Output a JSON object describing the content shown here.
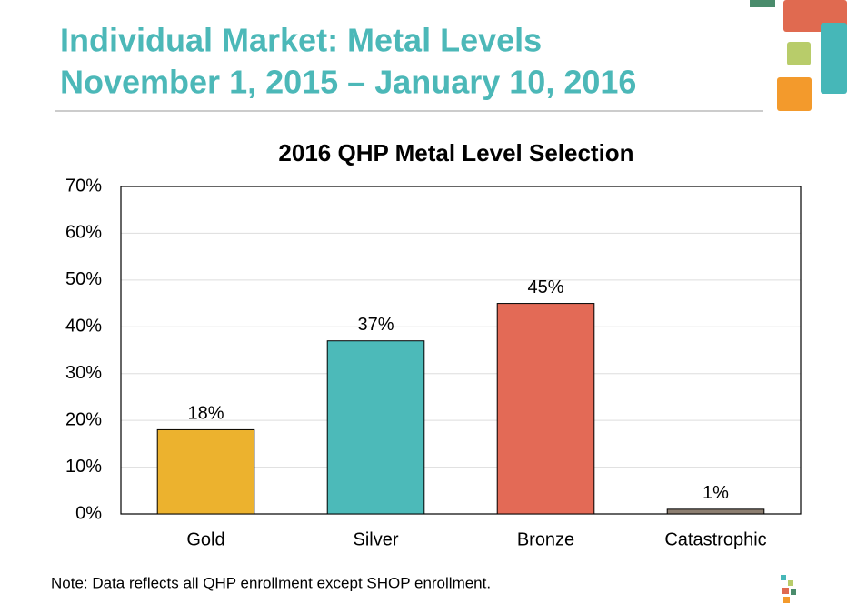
{
  "header": {
    "title_line1": "Individual Market: Metal Levels",
    "title_line2": "November 1, 2015 – January 10, 2016"
  },
  "chart_data": {
    "type": "bar",
    "title": "2016 QHP Metal Level Selection",
    "categories": [
      "Gold",
      "Silver",
      "Bronze",
      "Catastrophic"
    ],
    "values": [
      18,
      37,
      45,
      1
    ],
    "value_labels": [
      "18%",
      "37%",
      "45%",
      "1%"
    ],
    "colors": [
      "#ecb22e",
      "#4cbab9",
      "#e36a56",
      "#8c7e70"
    ],
    "ylim": [
      0,
      70
    ],
    "yticks": [
      {
        "value": 0,
        "label": "0%"
      },
      {
        "value": 10,
        "label": "10%"
      },
      {
        "value": 20,
        "label": "20%"
      },
      {
        "value": 30,
        "label": "30%"
      },
      {
        "value": 40,
        "label": "40%"
      },
      {
        "value": 50,
        "label": "50%"
      },
      {
        "value": 60,
        "label": "60%"
      },
      {
        "value": 70,
        "label": "70%"
      }
    ],
    "grid": true
  },
  "note": "Note: Data reflects all QHP enrollment except SHOP enrollment."
}
